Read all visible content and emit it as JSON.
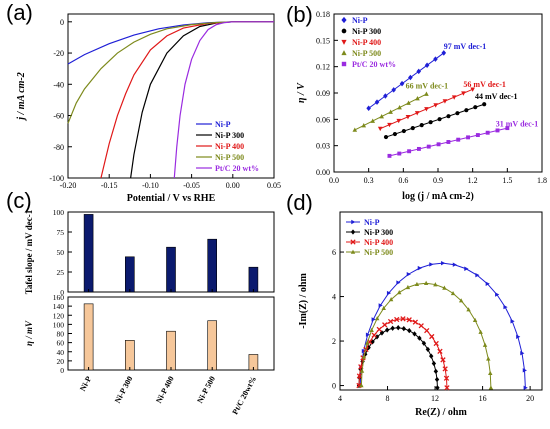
{
  "colors": {
    "ni_p": "#1f1fd6",
    "ni_p_300": "#000000",
    "ni_p_400": "#e01818",
    "ni_p_500": "#7d8a1c",
    "ptc": "#9a2be0",
    "bar_top": "#0b1a6e",
    "bar_bottom": "#f6c79a"
  },
  "chart_data": [
    {
      "panel": "(a)",
      "type": "line",
      "xlabel": "Potential / V vs RHE",
      "ylabel": "j / mA cm-2",
      "xlim": [
        -0.2,
        0.05
      ],
      "ylim": [
        -100,
        5
      ],
      "xticks": [
        "-0.20",
        "-0.15",
        "-0.10",
        "-0.05",
        "0.00",
        "0.05"
      ],
      "yticks": [
        "0",
        "-20",
        "-40",
        "-60",
        "-80",
        "-100"
      ],
      "legend": "bottom-right",
      "series": [
        {
          "name": "Ni-P",
          "color_key": "ni_p",
          "x": [
            -0.2,
            -0.18,
            -0.15,
            -0.12,
            -0.09,
            -0.06,
            -0.03,
            0,
            0.05
          ],
          "y": [
            -27,
            -21,
            -14,
            -8.5,
            -4.5,
            -2,
            -0.6,
            0,
            0
          ]
        },
        {
          "name": "Ni-P 300",
          "color_key": "ni_p_300",
          "x": [
            -0.124,
            -0.12,
            -0.11,
            -0.1,
            -0.08,
            -0.06,
            -0.04,
            -0.02,
            0,
            0.05
          ],
          "y": [
            -100,
            -85,
            -58,
            -40,
            -20,
            -9,
            -3,
            -0.8,
            0,
            0
          ]
        },
        {
          "name": "Ni-P 400",
          "color_key": "ni_p_400",
          "x": [
            -0.16,
            -0.15,
            -0.14,
            -0.13,
            -0.12,
            -0.1,
            -0.08,
            -0.06,
            -0.03,
            0,
            0.05
          ],
          "y": [
            -100,
            -78,
            -60,
            -46,
            -34,
            -18,
            -9,
            -4,
            -1,
            0,
            0
          ]
        },
        {
          "name": "Ni-P 500",
          "color_key": "ni_p_500",
          "x": [
            -0.2,
            -0.19,
            -0.18,
            -0.16,
            -0.14,
            -0.12,
            -0.1,
            -0.08,
            -0.05,
            -0.02,
            0,
            0.05
          ],
          "y": [
            -65,
            -52,
            -43,
            -30,
            -20,
            -13,
            -8,
            -4.5,
            -1.8,
            -0.4,
            0,
            0
          ]
        },
        {
          "name": "Pt/C 20 wt%",
          "color_key": "ptc",
          "x": [
            -0.071,
            -0.068,
            -0.064,
            -0.058,
            -0.05,
            -0.04,
            -0.03,
            -0.02,
            -0.01,
            0,
            0.05
          ],
          "y": [
            -100,
            -80,
            -60,
            -40,
            -24,
            -12,
            -5,
            -1.8,
            -0.5,
            0,
            0
          ]
        }
      ]
    },
    {
      "panel": "(b)",
      "type": "scatter",
      "xlabel": "log (j / mA cm-2)",
      "ylabel": "η / V",
      "xlim": [
        0,
        1.8
      ],
      "ylim": [
        0,
        0.18
      ],
      "xticks": [
        "0.0",
        "0.3",
        "0.6",
        "0.9",
        "1.2",
        "1.5",
        "1.8"
      ],
      "yticks": [
        "0.00",
        "0.03",
        "0.06",
        "0.09",
        "0.12",
        "0.15",
        "0.18"
      ],
      "legend": "top-left",
      "series": [
        {
          "name": "Ni-P",
          "color_key": "ni_p",
          "marker": "diamond",
          "x0": 0.3,
          "x1": 0.95,
          "intercept": 0.0435,
          "slope": 0.097,
          "points": 10
        },
        {
          "name": "Ni-P 300",
          "color_key": "ni_p_300",
          "marker": "circle",
          "x0": 0.45,
          "x1": 1.3,
          "intercept": 0.02,
          "slope": 0.044,
          "points": 12
        },
        {
          "name": "Ni-P 400",
          "color_key": "ni_p_400",
          "marker": "triangle-down",
          "x0": 0.4,
          "x1": 1.2,
          "intercept": 0.027,
          "slope": 0.056,
          "points": 11
        },
        {
          "name": "Ni-P 500",
          "color_key": "ni_p_500",
          "marker": "triangle-up",
          "x0": 0.18,
          "x1": 0.8,
          "intercept": 0.036,
          "slope": 0.066,
          "points": 9
        },
        {
          "name": "Pt/C 20 wt%",
          "color_key": "ptc",
          "marker": "square",
          "x0": 0.48,
          "x1": 1.5,
          "intercept": 0.0035,
          "slope": 0.031,
          "points": 13
        }
      ],
      "annotations": [
        {
          "text": "97 mV dec-1",
          "color_key": "ni_p",
          "x": 0.95,
          "y": 0.14
        },
        {
          "text": "66 mV dec-1",
          "color_key": "ni_p_500",
          "x": 0.62,
          "y": 0.095
        },
        {
          "text": "56 mV dec-1",
          "color_key": "ni_p_400",
          "x": 1.12,
          "y": 0.097
        },
        {
          "text": "44 mV dec-1",
          "color_key": "ni_p_300",
          "x": 1.22,
          "y": 0.083
        },
        {
          "text": "31 mV dec-1",
          "color_key": "ptc",
          "x": 1.4,
          "y": 0.052
        }
      ]
    },
    {
      "panel": "(c)",
      "type": "bar",
      "categories": [
        "Ni-P",
        "Ni-P 300",
        "Ni-P 400",
        "Ni-P 500",
        "Pt/C 20wt%"
      ],
      "series": [
        {
          "name": "Tafel slope / mV dec-1",
          "values": [
            97,
            44,
            56,
            66,
            31
          ],
          "ylim": [
            0,
            100
          ],
          "yticks": [
            "0",
            "25",
            "50",
            "75",
            "100"
          ],
          "color_key": "bar_top"
        },
        {
          "name": "η / mV",
          "values": [
            145,
            65,
            85,
            108,
            34
          ],
          "ylim": [
            0,
            160
          ],
          "yticks": [
            "0",
            "20",
            "40",
            "60",
            "80",
            "100",
            "120",
            "140",
            "160"
          ],
          "color_key": "bar_bottom"
        }
      ],
      "ylabel_top": "Tafel slope / mV dec-1",
      "ylabel_bottom": "η / mV"
    },
    {
      "panel": "(d)",
      "type": "line",
      "xlabel": "Re(Z) / ohm",
      "ylabel": "-Im(Z) / ohm",
      "xlim": [
        4,
        21
      ],
      "ylim": [
        -0.2,
        7.8
      ],
      "xticks": [
        "4",
        "8",
        "12",
        "16",
        "20"
      ],
      "yticks": [
        "0",
        "2",
        "4",
        "6"
      ],
      "legend": "top-left",
      "series": [
        {
          "name": "Ni-P",
          "color_key": "ni_p",
          "marker": "triangle-right",
          "r0": 5.7,
          "r1": 19.6,
          "peak": 5.5
        },
        {
          "name": "Ni-P 300",
          "color_key": "ni_p_300",
          "marker": "diamond",
          "r0": 5.6,
          "r1": 12.2,
          "peak": 2.6
        },
        {
          "name": "Ni-P 400",
          "color_key": "ni_p_400",
          "marker": "x",
          "r0": 5.6,
          "r1": 13.0,
          "peak": 3.0
        },
        {
          "name": "Ni-P 500",
          "color_key": "ni_p_500",
          "marker": "triangle-up",
          "r0": 5.8,
          "r1": 16.7,
          "peak": 4.6
        }
      ]
    }
  ],
  "panels": {
    "a_tag": "(a)",
    "b_tag": "(b)",
    "c_tag": "(c)",
    "d_tag": "(d)"
  }
}
